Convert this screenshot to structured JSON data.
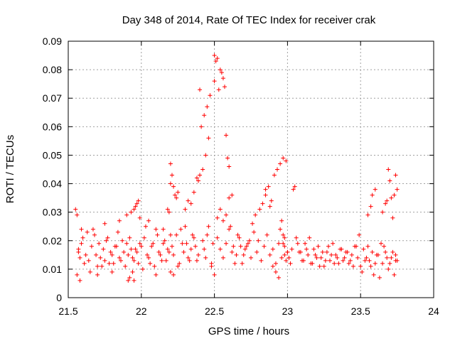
{
  "chart_data": {
    "type": "scatter",
    "title": "Day 348 of 2014, Rate Of TEC Index for receiver crak",
    "xlabel": "GPS time / hours",
    "ylabel": "ROTI / TECUs",
    "xlim": [
      21.5,
      24
    ],
    "ylim": [
      0,
      0.09
    ],
    "xticks": [
      21.5,
      22,
      22.5,
      23,
      23.5,
      24
    ],
    "xtick_labels": [
      "21.5",
      "22",
      "22.5",
      "23",
      "23.5",
      "24"
    ],
    "yticks": [
      0,
      0.01,
      0.02,
      0.03,
      0.04,
      0.05,
      0.06,
      0.07,
      0.08,
      0.09
    ],
    "ytick_labels": [
      "0",
      "0.01",
      "0.02",
      "0.03",
      "0.04",
      "0.05",
      "0.06",
      "0.07",
      "0.08",
      "0.09"
    ],
    "grid": true,
    "marker": "+",
    "color": "#ff0000",
    "series": [
      {
        "name": "ROTI",
        "x": [
          21.55,
          21.56,
          21.57,
          21.58,
          21.59,
          21.6,
          21.56,
          21.58,
          21.61,
          21.57,
          21.59,
          21.62,
          21.64,
          21.66,
          21.68,
          21.7,
          21.72,
          21.74,
          21.76,
          21.78,
          21.8,
          21.82,
          21.84,
          21.86,
          21.88,
          21.9,
          21.92,
          21.94,
          21.96,
          21.98,
          21.65,
          21.67,
          21.69,
          21.71,
          21.73,
          21.75,
          21.77,
          21.79,
          21.81,
          21.83,
          21.85,
          21.87,
          21.89,
          21.91,
          21.93,
          21.95,
          21.97,
          21.99,
          21.63,
          21.7,
          21.75,
          21.8,
          21.85,
          21.9,
          21.95,
          21.93,
          21.95,
          21.96,
          21.97,
          21.98,
          21.99,
          21.92,
          21.91,
          21.94,
          22.0,
          22.02,
          22.04,
          22.06,
          22.08,
          22.1,
          22.12,
          22.14,
          22.16,
          22.18,
          22.2,
          22.01,
          22.03,
          22.05,
          22.07,
          22.09,
          22.11,
          22.13,
          22.15,
          22.17,
          22.19,
          22.05,
          22.1,
          22.15,
          22.2,
          22.18,
          22.19,
          22.2,
          22.21,
          22.2,
          22.22,
          22.23,
          22.25,
          22.24,
          22.21,
          22.22,
          22.24,
          22.26,
          22.28,
          22.3,
          22.32,
          22.34,
          22.36,
          22.38,
          22.22,
          22.25,
          22.27,
          22.29,
          22.31,
          22.33,
          22.35,
          22.37,
          22.39,
          22.3,
          22.32,
          22.34,
          22.36,
          22.38,
          22.39,
          22.4,
          22.42,
          22.44,
          22.46,
          22.41,
          22.43,
          22.45,
          22.47,
          22.4,
          22.42,
          22.43,
          22.44,
          22.45,
          22.46,
          22.48,
          22.49,
          22.5,
          22.51,
          22.5,
          22.52,
          22.53,
          22.54,
          22.55,
          22.56,
          22.57,
          22.58,
          22.59,
          22.6,
          22.52,
          22.54,
          22.56,
          22.58,
          22.6,
          22.62,
          22.64,
          22.66,
          22.68,
          22.7,
          22.48,
          22.5,
          22.52,
          22.54,
          22.56,
          22.58,
          22.6,
          22.62,
          22.61,
          22.63,
          22.65,
          22.67,
          22.69,
          22.71,
          22.73,
          22.75,
          22.77,
          22.79,
          22.8,
          22.82,
          22.84,
          22.86,
          22.88,
          22.9,
          22.92,
          22.94,
          22.96,
          22.98,
          23.0,
          22.72,
          22.74,
          22.76,
          22.78,
          22.81,
          22.83,
          22.85,
          22.87,
          22.89,
          22.91,
          22.93,
          22.95,
          22.97,
          22.99,
          22.85,
          22.88,
          22.9,
          22.92,
          22.94,
          22.95,
          22.96,
          22.97,
          22.98,
          22.99,
          23.0,
          22.97,
          22.98,
          23.01,
          23.02,
          23.03,
          23.04,
          23.05,
          23.06,
          23.08,
          23.1,
          23.12,
          23.14,
          23.16,
          23.18,
          23.2,
          23.22,
          23.24,
          23.26,
          23.28,
          23.3,
          23.32,
          23.34,
          23.36,
          23.38,
          23.4,
          23.42,
          23.44,
          23.46,
          23.48,
          23.5,
          23.07,
          23.09,
          23.11,
          23.13,
          23.15,
          23.17,
          23.19,
          23.21,
          23.23,
          23.25,
          23.27,
          23.29,
          23.31,
          23.33,
          23.35,
          23.37,
          23.39,
          23.41,
          23.43,
          23.45,
          23.47,
          23.49,
          23.52,
          23.54,
          23.56,
          23.58,
          23.6,
          23.62,
          23.64,
          23.66,
          23.68,
          23.7,
          23.72,
          23.74,
          23.75,
          23.51,
          23.53,
          23.55,
          23.57,
          23.59,
          23.61,
          23.63,
          23.65,
          23.67,
          23.69,
          23.71,
          23.73,
          23.74,
          23.55,
          23.57,
          23.58,
          23.6,
          23.65,
          23.67,
          23.68,
          23.69,
          23.7,
          23.71,
          23.72,
          23.73,
          23.74,
          23.75
        ],
        "y": [
          0.031,
          0.029,
          0.017,
          0.014,
          0.024,
          0.021,
          0.008,
          0.006,
          0.012,
          0.016,
          0.019,
          0.015,
          0.013,
          0.018,
          0.022,
          0.011,
          0.014,
          0.017,
          0.02,
          0.012,
          0.015,
          0.018,
          0.023,
          0.013,
          0.016,
          0.019,
          0.021,
          0.014,
          0.017,
          0.012,
          0.009,
          0.024,
          0.015,
          0.019,
          0.011,
          0.013,
          0.021,
          0.016,
          0.012,
          0.018,
          0.014,
          0.02,
          0.011,
          0.015,
          0.017,
          0.013,
          0.016,
          0.019,
          0.023,
          0.008,
          0.026,
          0.009,
          0.027,
          0.029,
          0.006,
          0.03,
          0.031,
          0.032,
          0.033,
          0.034,
          0.028,
          0.007,
          0.006,
          0.009,
          0.018,
          0.021,
          0.015,
          0.012,
          0.019,
          0.024,
          0.016,
          0.013,
          0.02,
          0.017,
          0.022,
          0.01,
          0.025,
          0.014,
          0.018,
          0.011,
          0.022,
          0.015,
          0.019,
          0.013,
          0.016,
          0.027,
          0.008,
          0.024,
          0.009,
          0.031,
          0.03,
          0.047,
          0.043,
          0.04,
          0.039,
          0.036,
          0.037,
          0.035,
          0.018,
          0.015,
          0.022,
          0.012,
          0.019,
          0.025,
          0.014,
          0.017,
          0.021,
          0.013,
          0.008,
          0.011,
          0.024,
          0.016,
          0.019,
          0.013,
          0.022,
          0.018,
          0.015,
          0.031,
          0.034,
          0.033,
          0.037,
          0.042,
          0.041,
          0.043,
          0.045,
          0.05,
          0.056,
          0.06,
          0.064,
          0.067,
          0.071,
          0.073,
          0.02,
          0.017,
          0.014,
          0.022,
          0.025,
          0.012,
          0.019,
          0.076,
          0.083,
          0.085,
          0.084,
          0.073,
          0.08,
          0.079,
          0.077,
          0.074,
          0.057,
          0.049,
          0.046,
          0.021,
          0.017,
          0.014,
          0.019,
          0.024,
          0.016,
          0.012,
          0.022,
          0.018,
          0.015,
          0.011,
          0.008,
          0.028,
          0.031,
          0.027,
          0.029,
          0.035,
          0.036,
          0.025,
          0.018,
          0.015,
          0.021,
          0.012,
          0.017,
          0.019,
          0.014,
          0.023,
          0.016,
          0.02,
          0.013,
          0.018,
          0.022,
          0.015,
          0.017,
          0.012,
          0.019,
          0.014,
          0.021,
          0.016,
          0.018,
          0.02,
          0.026,
          0.029,
          0.031,
          0.033,
          0.038,
          0.039,
          0.034,
          0.043,
          0.045,
          0.047,
          0.049,
          0.048,
          0.036,
          0.032,
          0.011,
          0.009,
          0.007,
          0.024,
          0.027,
          0.022,
          0.018,
          0.013,
          0.016,
          0.019,
          0.015,
          0.014,
          0.012,
          0.017,
          0.038,
          0.039,
          0.021,
          0.016,
          0.013,
          0.019,
          0.015,
          0.012,
          0.017,
          0.014,
          0.011,
          0.016,
          0.013,
          0.018,
          0.015,
          0.012,
          0.014,
          0.017,
          0.013,
          0.016,
          0.012,
          0.015,
          0.018,
          0.014,
          0.011,
          0.019,
          0.016,
          0.013,
          0.017,
          0.021,
          0.012,
          0.015,
          0.018,
          0.014,
          0.011,
          0.016,
          0.013,
          0.019,
          0.015,
          0.012,
          0.017,
          0.014,
          0.016,
          0.013,
          0.011,
          0.018,
          0.022,
          0.017,
          0.014,
          0.013,
          0.016,
          0.012,
          0.015,
          0.019,
          0.018,
          0.014,
          0.012,
          0.016,
          0.015,
          0.013,
          0.009,
          0.013,
          0.018,
          0.011,
          0.008,
          0.015,
          0.007,
          0.012,
          0.016,
          0.01,
          0.014,
          0.008,
          0.013,
          0.029,
          0.032,
          0.036,
          0.038,
          0.03,
          0.033,
          0.034,
          0.045,
          0.041,
          0.035,
          0.028,
          0.036,
          0.043,
          0.038
        ]
      }
    ]
  }
}
